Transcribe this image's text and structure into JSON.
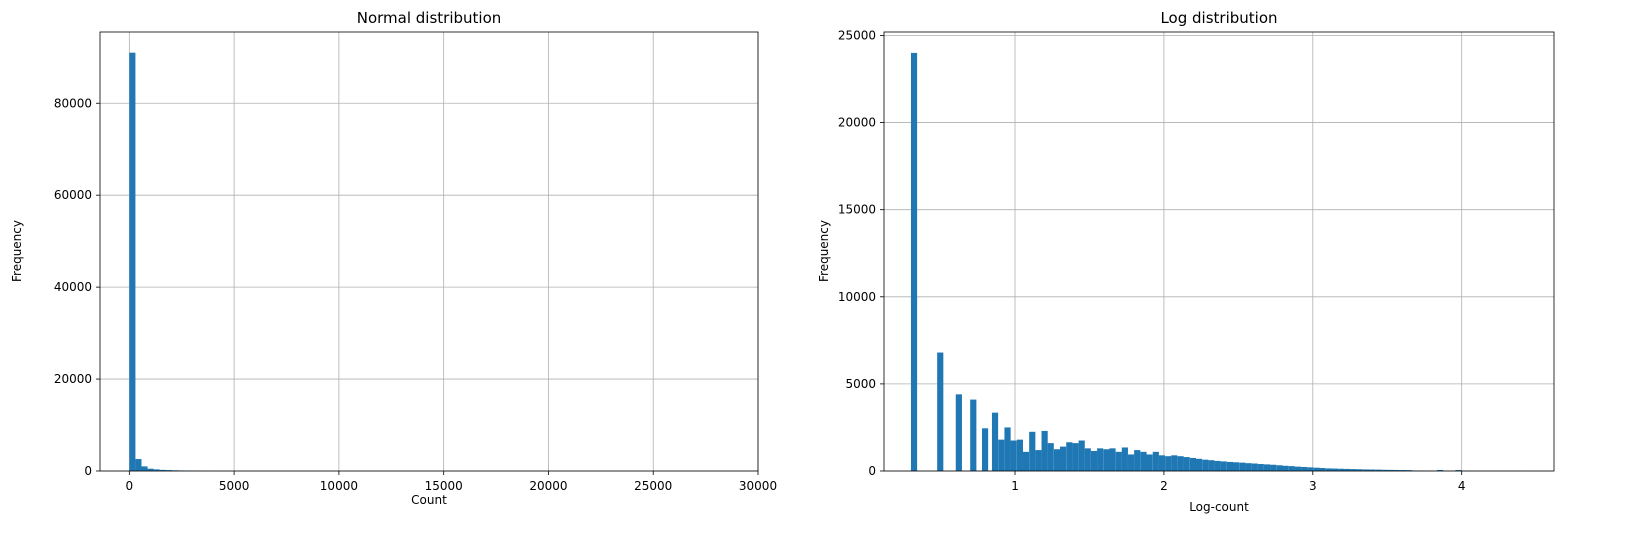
{
  "chart_data": [
    {
      "type": "bar",
      "title": "Normal distribution",
      "xlabel": "Count",
      "ylabel": "Frequency",
      "xlim": [
        -1400,
        30000
      ],
      "ylim": [
        0,
        95500
      ],
      "xticks": [
        0,
        5000,
        10000,
        15000,
        20000,
        25000,
        30000
      ],
      "xtick_labels": [
        "0",
        "5000",
        "10000",
        "15000",
        "20000",
        "25000",
        "30000"
      ],
      "yticks": [
        0,
        20000,
        40000,
        60000,
        80000
      ],
      "ytick_labels": [
        "0",
        "20000",
        "40000",
        "60000",
        "80000"
      ],
      "grid": true,
      "color": "#1f77b4",
      "bin_width": 290,
      "x": [
        0,
        290,
        580,
        870,
        1160,
        1450,
        1740,
        2030,
        2320,
        2610,
        2900,
        3190,
        3480
      ],
      "values": [
        91000,
        2600,
        1000,
        500,
        350,
        250,
        200,
        150,
        120,
        100,
        80,
        30,
        20
      ]
    },
    {
      "type": "bar",
      "title": "Log distribution",
      "xlabel": "Log-count",
      "ylabel": "Frequency",
      "xlim": [
        0.12,
        4.62
      ],
      "ylim": [
        0,
        25200
      ],
      "xticks": [
        1,
        2,
        3,
        4
      ],
      "xtick_labels": [
        "1",
        "2",
        "3",
        "4"
      ],
      "yticks": [
        0,
        5000,
        10000,
        15000,
        20000,
        25000
      ],
      "ytick_labels": [
        "0",
        "5000",
        "10000",
        "15000",
        "20000",
        "25000"
      ],
      "grid": true,
      "color": "#1f77b4",
      "bin_width": 0.0415,
      "x": [
        0.301,
        0.477,
        0.602,
        0.699,
        0.778,
        0.845,
        0.887,
        0.929,
        0.97,
        1.012,
        1.053,
        1.095,
        1.136,
        1.178,
        1.219,
        1.261,
        1.302,
        1.344,
        1.385,
        1.427,
        1.468,
        1.51,
        1.551,
        1.593,
        1.634,
        1.676,
        1.717,
        1.759,
        1.8,
        1.842,
        1.883,
        1.925,
        1.966,
        2.008,
        2.049,
        2.091,
        2.132,
        2.174,
        2.215,
        2.257,
        2.298,
        2.34,
        2.381,
        2.423,
        2.464,
        2.506,
        2.547,
        2.589,
        2.63,
        2.672,
        2.713,
        2.755,
        2.796,
        2.838,
        2.879,
        2.921,
        2.962,
        3.004,
        3.045,
        3.087,
        3.128,
        3.17,
        3.211,
        3.253,
        3.294,
        3.336,
        3.377,
        3.419,
        3.46,
        3.502,
        3.543,
        3.585,
        3.626,
        3.668,
        3.709,
        3.751,
        3.792,
        3.834,
        3.875,
        3.917,
        3.958,
        4.0,
        4.041,
        4.083,
        4.124,
        4.166,
        4.207,
        4.249,
        4.29,
        4.332,
        4.373,
        4.415,
        4.456
      ],
      "values": [
        24000,
        6800,
        4400,
        4100,
        2450,
        3350,
        1800,
        2500,
        1750,
        1800,
        1100,
        2250,
        1200,
        2300,
        1600,
        1250,
        1400,
        1650,
        1600,
        1750,
        1300,
        1150,
        1300,
        1250,
        1300,
        1100,
        1350,
        950,
        1200,
        1100,
        950,
        1100,
        900,
        850,
        900,
        850,
        800,
        750,
        700,
        650,
        620,
        580,
        550,
        520,
        500,
        480,
        450,
        430,
        400,
        380,
        360,
        330,
        300,
        280,
        250,
        230,
        210,
        190,
        170,
        150,
        140,
        130,
        120,
        110,
        100,
        90,
        85,
        80,
        70,
        65,
        60,
        55,
        50,
        30,
        25,
        20,
        15,
        60,
        15,
        10,
        55,
        10,
        8,
        6,
        5,
        4,
        3,
        3,
        2,
        2,
        2,
        1,
        1
      ]
    }
  ]
}
